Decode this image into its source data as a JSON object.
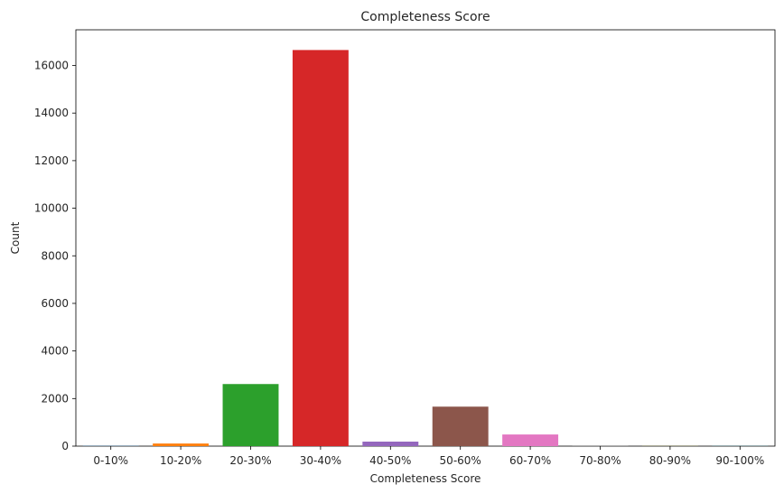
{
  "chart_data": {
    "type": "bar",
    "title": "Completeness Score",
    "xlabel": "Completeness Score",
    "ylabel": "Count",
    "categories": [
      "0-10%",
      "10-20%",
      "20-30%",
      "30-40%",
      "40-50%",
      "50-60%",
      "60-70%",
      "70-80%",
      "80-90%",
      "90-100%"
    ],
    "values": [
      10,
      110,
      2610,
      16650,
      190,
      1660,
      490,
      10,
      5,
      5
    ],
    "colors": [
      "#1f77b4",
      "#ff7f0e",
      "#2ca02c",
      "#d62728",
      "#9467bd",
      "#8c564b",
      "#e377c2",
      "#7f7f7f",
      "#bcbd22",
      "#17becf"
    ],
    "ylim": [
      0,
      17500
    ],
    "yticks": [
      0,
      2000,
      4000,
      6000,
      8000,
      10000,
      12000,
      14000,
      16000
    ],
    "grid": false,
    "legend": "none"
  }
}
